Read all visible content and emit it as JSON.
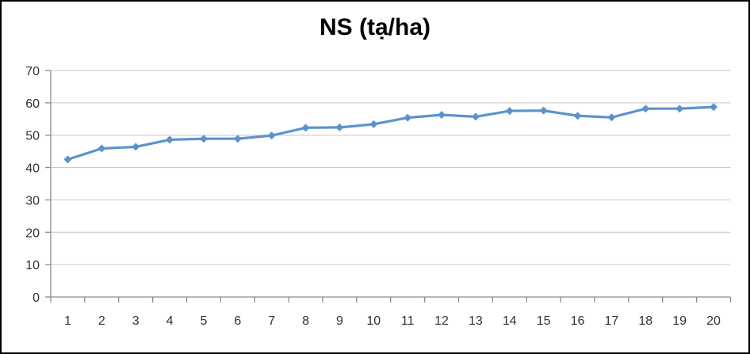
{
  "window": {
    "background": "#FFFFFF",
    "border_color": "#000000"
  },
  "chart_data": {
    "type": "line",
    "title": "NS (tạ/ha)",
    "x": [
      1,
      2,
      3,
      4,
      5,
      6,
      7,
      8,
      9,
      10,
      11,
      12,
      13,
      14,
      15,
      16,
      17,
      18,
      19,
      20
    ],
    "series": [
      {
        "name": "NS (tạ/ha)",
        "values": [
          42.5,
          45.9,
          46.4,
          48.6,
          48.9,
          48.9,
          49.9,
          52.3,
          52.4,
          53.4,
          55.4,
          56.3,
          55.7,
          57.5,
          57.6,
          56.0,
          55.5,
          58.2,
          58.2,
          58.7
        ]
      }
    ],
    "xlabel": "",
    "ylabel": "",
    "ylim": [
      0,
      70
    ],
    "yticks": [
      0,
      10,
      20,
      30,
      40,
      50,
      60,
      70
    ],
    "xtick_labels": [
      "1",
      "2",
      "3",
      "4",
      "5",
      "6",
      "7",
      "8",
      "9",
      "10",
      "11",
      "12",
      "13",
      "14",
      "15",
      "16",
      "17",
      "18",
      "19",
      "20"
    ],
    "grid": "horizontal",
    "legend": "none",
    "marker": "diamond",
    "colors": {
      "line": "#5B93CE",
      "marker": "#5B93CE",
      "gridline": "#C6C6C6",
      "axis": "#8C8C8C",
      "tick_label": "#333333",
      "title": "#000000"
    }
  }
}
